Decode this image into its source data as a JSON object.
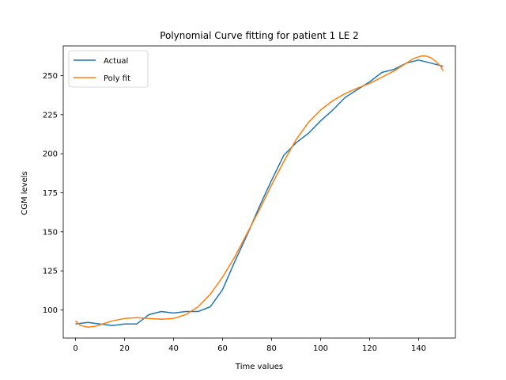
{
  "chart_data": {
    "type": "line",
    "title": "Polynomial Curve fitting for patient 1 LE 2",
    "xlabel": "Time values",
    "ylabel": "CGM levels",
    "xlim": [
      -5,
      155
    ],
    "ylim": [
      82,
      269
    ],
    "xticks": [
      0,
      20,
      40,
      60,
      80,
      100,
      120,
      140
    ],
    "yticks": [
      100,
      125,
      150,
      175,
      200,
      225,
      250
    ],
    "grid": false,
    "legend_position": "top-left",
    "series": [
      {
        "name": "Actual",
        "color": "#1f77b4",
        "x": [
          0,
          5,
          10,
          15,
          20,
          25,
          30,
          35,
          40,
          45,
          50,
          55,
          60,
          65,
          70,
          75,
          80,
          85,
          90,
          95,
          100,
          105,
          110,
          115,
          120,
          125,
          130,
          135,
          140,
          145,
          150
        ],
        "y": [
          91,
          92,
          91,
          90,
          91,
          91,
          97,
          99,
          98,
          99,
          99,
          102,
          113,
          131,
          148,
          166,
          183,
          199,
          207,
          213,
          221,
          228,
          236,
          241,
          246,
          252,
          254,
          258,
          260,
          258,
          256
        ]
      },
      {
        "name": "Poly fit",
        "color": "#ff7f0e",
        "x": [
          0,
          2,
          5,
          8,
          10,
          15,
          20,
          25,
          30,
          35,
          40,
          45,
          50,
          55,
          60,
          65,
          70,
          75,
          80,
          85,
          90,
          95,
          100,
          105,
          110,
          115,
          120,
          125,
          130,
          135,
          138,
          141,
          143,
          145,
          147,
          149,
          150
        ],
        "y": [
          93,
          90,
          89,
          89.5,
          90.5,
          93,
          94.5,
          95,
          94.5,
          94,
          94.5,
          97,
          102,
          110,
          121,
          134,
          149,
          164,
          180,
          195,
          209,
          220,
          228,
          234,
          238.5,
          242,
          245,
          249,
          253,
          258,
          261,
          262.5,
          262.5,
          261.5,
          259,
          256,
          253
        ]
      }
    ]
  }
}
